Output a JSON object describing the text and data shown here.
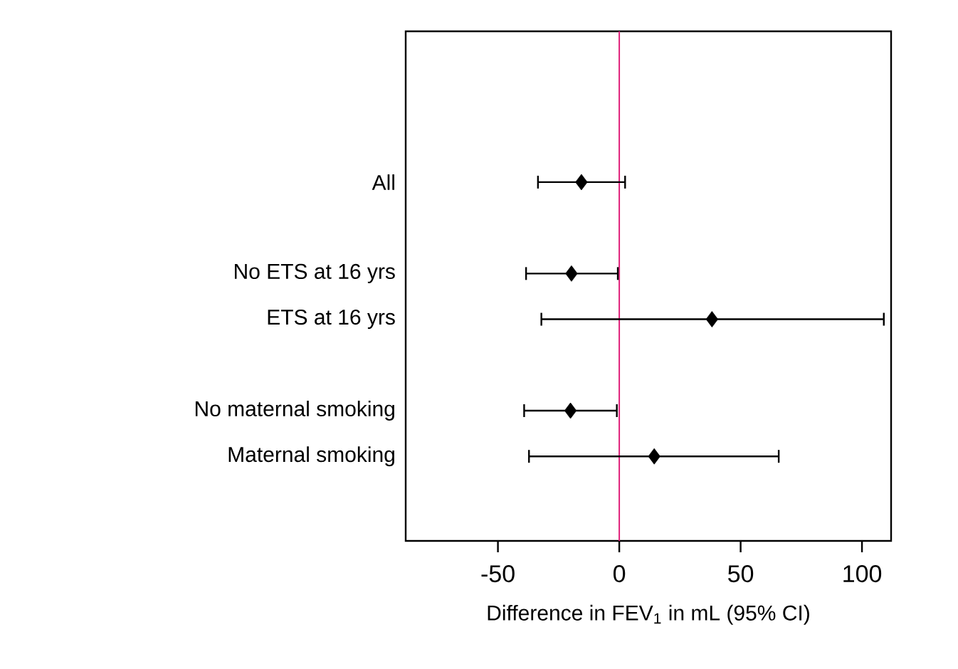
{
  "chart_data": {
    "type": "scatter",
    "orientation": "horizontal",
    "categories": [
      "All",
      null,
      "No ETS at 16 yrs",
      "ETS at 16 yrs",
      null,
      "No maternal smoking",
      "Maternal smoking"
    ],
    "series": [
      {
        "color": "#000000",
        "values": [
          -15.6,
          null,
          -19.7,
          38.2,
          null,
          -20.1,
          14.4
        ],
        "errors": [
          [
            -33.5,
            2.4
          ],
          null,
          [
            -38.4,
            -0.6
          ],
          [
            -32.1,
            109
          ],
          null,
          [
            -39.2,
            -1.0
          ],
          [
            -37.2,
            65.7
          ]
        ]
      }
    ],
    "marker": "diamond",
    "xlabel": "Difference in FEV$_{1}$ in mL (95% CI)",
    "xlim": [
      -88,
      112
    ],
    "xticks": [
      -50,
      0,
      50,
      100
    ],
    "ref_lines": [
      {
        "axis": "x",
        "value": 0,
        "color": "#e0207a"
      }
    ],
    "grid": false
  }
}
